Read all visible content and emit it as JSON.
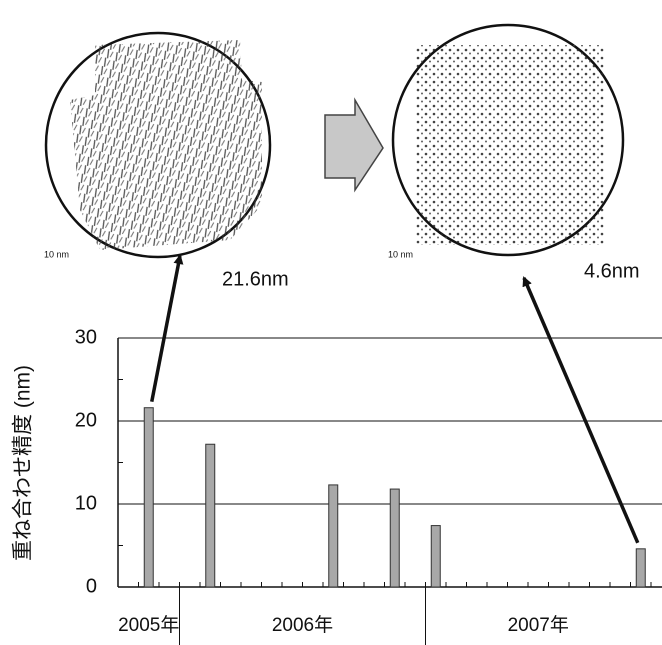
{
  "chart_data": {
    "type": "bar",
    "y_label": "重ね合わせ精度 (nm)",
    "categories": [
      null,
      null,
      null,
      null,
      null,
      null,
      null,
      null,
      null,
      null,
      null,
      null,
      null,
      null,
      null,
      null,
      null,
      null,
      null,
      null,
      null,
      null,
      null,
      null,
      null,
      null
    ],
    "values": [
      null,
      21.6,
      null,
      null,
      17.2,
      null,
      null,
      null,
      null,
      null,
      12.3,
      null,
      null,
      11.8,
      null,
      7.4,
      null,
      null,
      null,
      null,
      null,
      null,
      null,
      null,
      null,
      4.6
    ],
    "year_groups": [
      {
        "label": "2005年",
        "months": 3
      },
      {
        "label": "2006年",
        "months": 12
      },
      {
        "label": "2007年",
        "months": 11
      }
    ],
    "color": "#a8a8a8",
    "ylim": [
      0,
      30
    ],
    "yticks": [
      0,
      10,
      20,
      30
    ],
    "grid": true,
    "images": [
      {
        "scale": "10 nm",
        "annotation": "21.6nm"
      },
      {
        "scale": "10 nm",
        "annotation": "4.6nm"
      }
    ]
  }
}
